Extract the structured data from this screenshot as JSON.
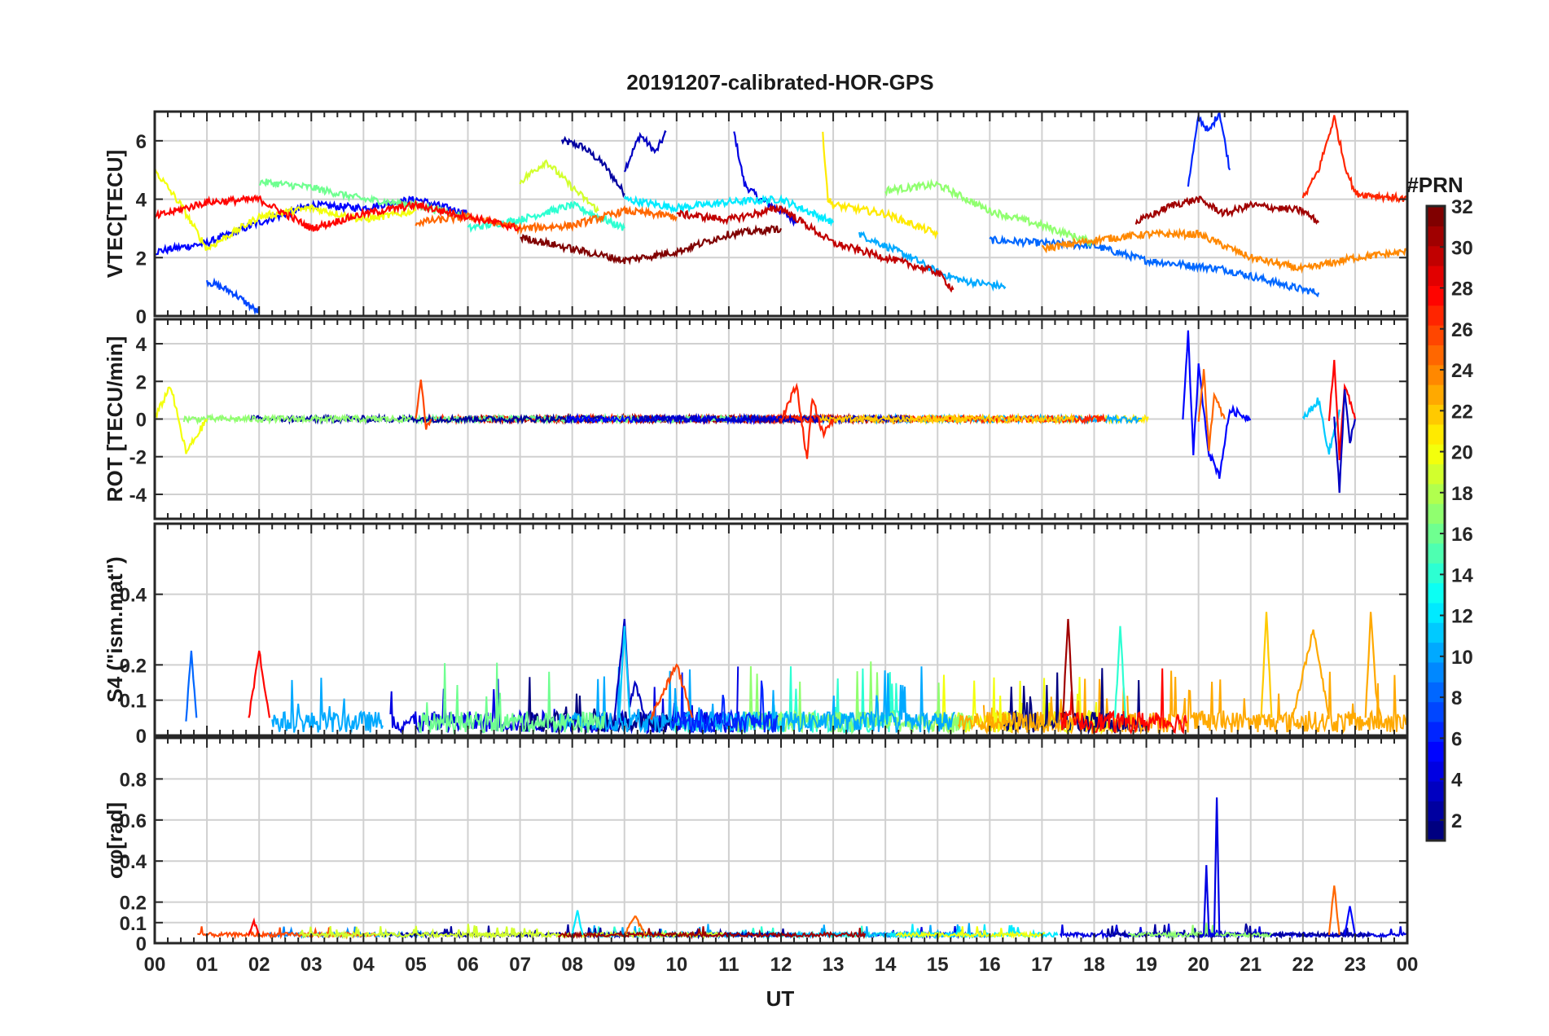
{
  "figure": {
    "title": "20191207-calibrated-HOR-GPS",
    "xlabel": "UT",
    "x_tick_labels": [
      "00",
      "01",
      "02",
      "03",
      "04",
      "05",
      "06",
      "07",
      "08",
      "09",
      "10",
      "11",
      "12",
      "13",
      "14",
      "15",
      "16",
      "17",
      "18",
      "19",
      "20",
      "21",
      "22",
      "23",
      "00"
    ]
  },
  "colorbar": {
    "label": "#PRN",
    "range": [
      1,
      32
    ],
    "tick_labels": [
      "2",
      "4",
      "6",
      "8",
      "10",
      "12",
      "14",
      "16",
      "18",
      "20",
      "22",
      "24",
      "26",
      "28",
      "30",
      "32"
    ],
    "colormap": "jet",
    "colors": [
      "#00008f",
      "#0000ff",
      "#0080ff",
      "#00ffff",
      "#80ff80",
      "#ffff00",
      "#ff8000",
      "#ff0000",
      "#800000"
    ]
  },
  "chart_data": [
    {
      "type": "line",
      "panel": "vtec",
      "ylabel": "VTEC[TECU]",
      "ylim": [
        0,
        7
      ],
      "yticks": [
        0,
        2,
        4,
        6
      ],
      "xlim": [
        0,
        24
      ],
      "grid": true,
      "series": [
        {
          "prn": 2,
          "x": [
            7.8,
            8.2,
            8.6,
            9.0
          ],
          "y": [
            6.0,
            5.8,
            5.2,
            4.2
          ]
        },
        {
          "prn": 3,
          "x": [
            9.0,
            9.3,
            9.6,
            9.8
          ],
          "y": [
            5.0,
            6.2,
            5.6,
            6.3
          ]
        },
        {
          "prn": 4,
          "x": [
            11.1,
            11.3,
            11.6,
            12.0,
            12.3
          ],
          "y": [
            6.3,
            4.5,
            4.0,
            3.6,
            3.2
          ]
        },
        {
          "prn": 5,
          "x": [
            0.0,
            1.0,
            2.0,
            3.0,
            4.0,
            5.0,
            6.0
          ],
          "y": [
            2.2,
            2.5,
            3.2,
            3.8,
            3.7,
            4.0,
            3.5
          ]
        },
        {
          "prn": 6,
          "x": [
            19.8,
            20.0,
            20.2,
            20.4,
            20.6
          ],
          "y": [
            4.5,
            6.8,
            6.3,
            7.0,
            5.0
          ]
        },
        {
          "prn": 7,
          "x": [
            1.0,
            1.5,
            2.0
          ],
          "y": [
            1.2,
            0.8,
            0.1
          ]
        },
        {
          "prn": 8,
          "x": [
            16.0,
            18.0,
            19.0,
            20.5,
            22.0,
            22.3
          ],
          "y": [
            2.6,
            2.4,
            1.9,
            1.6,
            0.9,
            0.8
          ]
        },
        {
          "prn": 10,
          "x": [
            13.5,
            14.5,
            15.0,
            15.5,
            16.3
          ],
          "y": [
            2.8,
            2.0,
            1.5,
            1.2,
            1.0
          ]
        },
        {
          "prn": 12,
          "x": [
            9.0,
            10.0,
            11.0,
            12.0,
            13.0
          ],
          "y": [
            4.0,
            3.7,
            3.9,
            4.0,
            3.2
          ]
        },
        {
          "prn": 14,
          "x": [
            6.0,
            7.0,
            8.0,
            9.0
          ],
          "y": [
            3.0,
            3.3,
            3.8,
            3.0
          ]
        },
        {
          "prn": 16,
          "x": [
            2.0,
            3.0,
            4.0,
            5.0,
            6.0
          ],
          "y": [
            4.6,
            4.4,
            4.0,
            3.8,
            3.4
          ]
        },
        {
          "prn": 17,
          "x": [
            14.0,
            15.0,
            16.0,
            17.0,
            18.0
          ],
          "y": [
            4.3,
            4.5,
            3.6,
            3.1,
            2.5
          ]
        },
        {
          "prn": 19,
          "x": [
            7.0,
            7.5,
            8.0,
            8.5
          ],
          "y": [
            4.6,
            5.3,
            4.4,
            3.6
          ]
        },
        {
          "prn": 20,
          "x": [
            0.0,
            0.5,
            1.0,
            2.0,
            3.0,
            4.0,
            5.0
          ],
          "y": [
            5.0,
            3.8,
            2.3,
            3.4,
            3.7,
            3.3,
            3.6
          ]
        },
        {
          "prn": 21,
          "x": [
            12.8,
            12.9,
            13.0,
            14.0,
            15.0
          ],
          "y": [
            6.3,
            4.0,
            3.8,
            3.5,
            2.8
          ]
        },
        {
          "prn": 24,
          "x": [
            17.0,
            18.0,
            19.0,
            20.0,
            21.0,
            22.0,
            23.0,
            24.0
          ],
          "y": [
            2.3,
            2.6,
            2.8,
            2.8,
            2.0,
            1.6,
            2.0,
            2.2
          ]
        },
        {
          "prn": 25,
          "x": [
            5.0,
            6.0,
            7.0,
            8.0,
            9.0,
            10.0
          ],
          "y": [
            3.2,
            3.4,
            3.0,
            3.1,
            3.6,
            3.4
          ]
        },
        {
          "prn": 27,
          "x": [
            22.0,
            22.3,
            22.6,
            22.8,
            23.0,
            24.0
          ],
          "y": [
            4.0,
            5.0,
            6.8,
            5.2,
            4.2,
            4.0
          ]
        },
        {
          "prn": 28,
          "x": [
            0.0,
            1.0,
            2.0,
            3.0,
            4.0,
            5.0,
            6.0,
            7.0
          ],
          "y": [
            3.4,
            3.9,
            4.0,
            3.0,
            3.5,
            3.8,
            3.4,
            3.0
          ]
        },
        {
          "prn": 30,
          "x": [
            10.0,
            11.0,
            12.0,
            13.0,
            14.0,
            15.0,
            15.3
          ],
          "y": [
            3.5,
            3.3,
            3.7,
            2.5,
            2.0,
            1.5,
            0.9
          ]
        },
        {
          "prn": 31,
          "x": [
            18.8,
            19.5,
            20.0,
            20.5,
            21.0,
            22.0,
            22.3
          ],
          "y": [
            3.2,
            3.8,
            4.0,
            3.5,
            3.8,
            3.6,
            3.2
          ]
        },
        {
          "prn": 32,
          "x": [
            7.0,
            8.0,
            9.0,
            10.0,
            11.0,
            12.0
          ],
          "y": [
            2.7,
            2.3,
            1.9,
            2.2,
            2.8,
            3.0
          ]
        }
      ]
    },
    {
      "type": "line",
      "panel": "rot",
      "ylabel": "ROT [TECU/min]",
      "ylim": [
        -5.3,
        5.3
      ],
      "yticks": [
        -4,
        -2,
        0,
        2,
        4
      ],
      "xlim": [
        0,
        24
      ],
      "grid": true,
      "series": [
        {
          "prn": 5,
          "x": [
            19.7,
            19.8,
            19.9,
            20.0,
            20.2,
            20.4,
            20.6,
            21.0
          ],
          "y": [
            0.0,
            4.7,
            -2.0,
            2.8,
            -1.8,
            -3.0,
            0.5,
            0.0
          ]
        },
        {
          "prn": 27,
          "x": [
            12.0,
            12.3,
            12.5,
            12.6,
            12.8,
            13.0
          ],
          "y": [
            0.0,
            1.8,
            -2.2,
            1.2,
            -0.8,
            0.0
          ]
        },
        {
          "prn": 26,
          "x": [
            5.0,
            5.1,
            5.2,
            5.3
          ],
          "y": [
            0.0,
            1.9,
            -0.4,
            0.0
          ]
        },
        {
          "prn": 25,
          "x": [
            20.0,
            20.1,
            20.2,
            20.3,
            20.5
          ],
          "y": [
            0.0,
            2.5,
            -1.5,
            1.2,
            0.0
          ]
        },
        {
          "prn": 11,
          "x": [
            22.0,
            22.3,
            22.5,
            22.7
          ],
          "y": [
            0.0,
            1.0,
            -1.8,
            0.5
          ]
        },
        {
          "prn": 28,
          "x": [
            22.5,
            22.6,
            22.7,
            22.8,
            23.0
          ],
          "y": [
            0.0,
            3.0,
            -2.0,
            1.8,
            0.0
          ]
        },
        {
          "prn": 3,
          "x": [
            22.6,
            22.7,
            22.8,
            22.9,
            23.0
          ],
          "y": [
            0.0,
            -3.8,
            1.5,
            -1.2,
            0.0
          ]
        },
        {
          "prn": 20,
          "x": [
            0.0,
            0.3,
            0.6,
            1.0
          ],
          "y": [
            0.0,
            1.8,
            -1.8,
            0.0
          ]
        }
      ]
    },
    {
      "type": "line",
      "panel": "s4",
      "ylabel": "S4 (\"ism.mat\")",
      "ylim": [
        0,
        0.6
      ],
      "yticks": [
        0,
        0.1,
        0.2,
        0.4
      ],
      "xlim": [
        0,
        24
      ],
      "grid": true,
      "series": [
        {
          "prn": 3,
          "x": [
            8.8,
            9.0,
            9.1,
            9.2,
            9.4
          ],
          "y": [
            0.04,
            0.33,
            0.08,
            0.15,
            0.05
          ]
        },
        {
          "prn": 8,
          "x": [
            0.6,
            0.7,
            0.8
          ],
          "y": [
            0.04,
            0.24,
            0.05
          ]
        },
        {
          "prn": 11,
          "x": [
            8.9,
            9.0,
            9.1
          ],
          "y": [
            0.05,
            0.31,
            0.05
          ]
        },
        {
          "prn": 22,
          "x": [
            21.2,
            21.3,
            21.4
          ],
          "y": [
            0.05,
            0.35,
            0.05
          ]
        },
        {
          "prn": 23,
          "x": [
            23.2,
            23.3,
            23.4,
            23.5
          ],
          "y": [
            0.05,
            0.35,
            0.12,
            0.05
          ]
        },
        {
          "prn": 23,
          "x": [
            21.8,
            22.2,
            22.5
          ],
          "y": [
            0.05,
            0.3,
            0.05
          ]
        },
        {
          "prn": 31,
          "x": [
            17.4,
            17.5,
            17.6
          ],
          "y": [
            0.05,
            0.33,
            0.05
          ]
        },
        {
          "prn": 14,
          "x": [
            18.4,
            18.5,
            18.6
          ],
          "y": [
            0.05,
            0.31,
            0.05
          ]
        },
        {
          "prn": 28,
          "x": [
            1.8,
            2.0,
            2.2
          ],
          "y": [
            0.05,
            0.24,
            0.05
          ]
        },
        {
          "prn": 26,
          "x": [
            9.5,
            10.0,
            10.3
          ],
          "y": [
            0.05,
            0.2,
            0.05
          ]
        }
      ]
    },
    {
      "type": "line",
      "panel": "sigma_phi",
      "ylabel": "σφ[rad]",
      "ylim": [
        0,
        1.0
      ],
      "yticks": [
        0,
        0.1,
        0.2,
        0.4,
        0.6,
        0.8
      ],
      "xlim": [
        0,
        24
      ],
      "grid": true,
      "series": [
        {
          "prn": 4,
          "x": [
            20.0,
            20.1,
            20.15,
            20.2,
            20.3,
            20.35,
            20.4
          ],
          "y": [
            0.04,
            0.04,
            0.38,
            0.04,
            0.04,
            0.71,
            0.04
          ]
        },
        {
          "prn": 25,
          "x": [
            22.5,
            22.6,
            22.7
          ],
          "y": [
            0.04,
            0.28,
            0.04
          ]
        },
        {
          "prn": 12,
          "x": [
            8.0,
            8.1,
            8.2
          ],
          "y": [
            0.04,
            0.16,
            0.04
          ]
        },
        {
          "prn": 25,
          "x": [
            9.0,
            9.2,
            9.4
          ],
          "y": [
            0.04,
            0.13,
            0.04
          ]
        },
        {
          "prn": 28,
          "x": [
            1.8,
            1.9,
            2.0
          ],
          "y": [
            0.04,
            0.11,
            0.04
          ]
        },
        {
          "prn": 5,
          "x": [
            22.8,
            22.9,
            23.0
          ],
          "y": [
            0.04,
            0.18,
            0.04
          ]
        }
      ]
    }
  ]
}
